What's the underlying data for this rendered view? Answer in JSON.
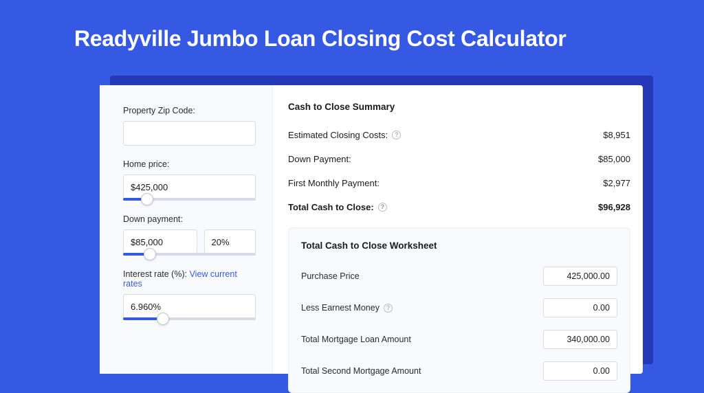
{
  "page": {
    "title": "Readyville Jumbo Loan Closing Cost Calculator",
    "bg_color": "#3659e3",
    "shadow_color": "#2438b8",
    "card_bg": "#ffffff",
    "panel_bg": "#f8fafd",
    "border_color": "#d6dbe6",
    "accent_color": "#3659e3",
    "text_color": "#1b1b1b"
  },
  "inputs": {
    "zip": {
      "label": "Property Zip Code:",
      "value": ""
    },
    "home_price": {
      "label": "Home price:",
      "value": "$425,000",
      "slider_pct": 18
    },
    "down_payment": {
      "label": "Down payment:",
      "value": "$85,000",
      "percent": "20%",
      "slider_pct": 20
    },
    "interest_rate": {
      "label_prefix": "Interest rate (%): ",
      "link_text": "View current rates",
      "value": "6.960%",
      "slider_pct": 30
    }
  },
  "summary": {
    "title": "Cash to Close Summary",
    "rows": [
      {
        "label": "Estimated Closing Costs:",
        "help": true,
        "value": "$8,951",
        "bold": false
      },
      {
        "label": "Down Payment:",
        "help": false,
        "value": "$85,000",
        "bold": false
      },
      {
        "label": "First Monthly Payment:",
        "help": false,
        "value": "$2,977",
        "bold": false
      },
      {
        "label": "Total Cash to Close:",
        "help": true,
        "value": "$96,928",
        "bold": true
      }
    ]
  },
  "worksheet": {
    "title": "Total Cash to Close Worksheet",
    "rows": [
      {
        "label": "Purchase Price",
        "help": false,
        "value": "425,000.00"
      },
      {
        "label": "Less Earnest Money",
        "help": true,
        "value": "0.00"
      },
      {
        "label": "Total Mortgage Loan Amount",
        "help": false,
        "value": "340,000.00"
      },
      {
        "label": "Total Second Mortgage Amount",
        "help": false,
        "value": "0.00"
      }
    ]
  }
}
